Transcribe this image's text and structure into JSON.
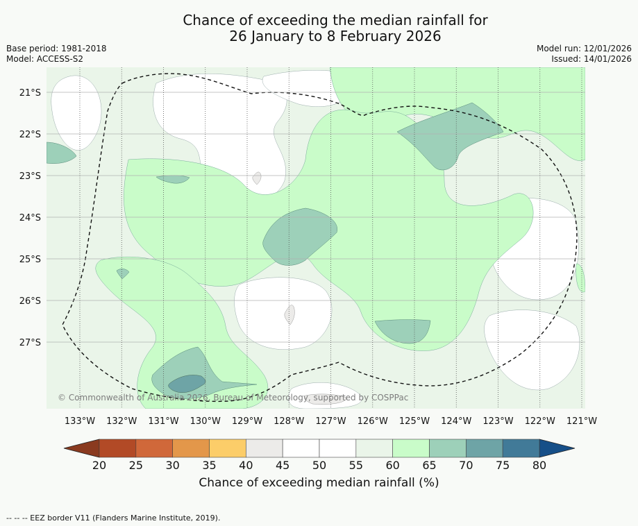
{
  "title": {
    "line1": "Chance of exceeding the median rainfall for",
    "line2": "26 January to 8 February 2026"
  },
  "meta": {
    "base_period": "Base period: 1981-2018",
    "model": "Model: ACCESS-S2",
    "model_run": "Model run: 12/01/2026",
    "issued": "Issued: 14/01/2026"
  },
  "map": {
    "lat_labels": [
      "21°S",
      "22°S",
      "23°S",
      "24°S",
      "25°S",
      "26°S",
      "27°S"
    ],
    "lon_labels": [
      "133°W",
      "132°W",
      "131°W",
      "130°W",
      "129°W",
      "128°W",
      "127°W",
      "126°W",
      "125°W",
      "124°W",
      "123°W",
      "122°W",
      "121°W"
    ],
    "copyright": "© Commonwealth of Australia 2026, Bureau of Meteorology, supported by COSPPac"
  },
  "colorbar": {
    "ticks": [
      "20",
      "25",
      "30",
      "35",
      "40",
      "45",
      "50",
      "55",
      "60",
      "65",
      "70",
      "75",
      "80"
    ],
    "colors": [
      "#b24a26",
      "#d0683a",
      "#e3974a",
      "#fccd69",
      "#ecebe9",
      "#ffffff",
      "#ffffff",
      "#eaf5e9",
      "#c9fcc9",
      "#9dd0b9",
      "#6ea4a6",
      "#417a98"
    ],
    "under_color": "#8a3a1f",
    "over_color": "#164f88",
    "label": "Chance of exceeding median rainfall (%)"
  },
  "footer": "--  --  -- EEZ border V11 (Flanders Marine Institute, 2019)."
}
